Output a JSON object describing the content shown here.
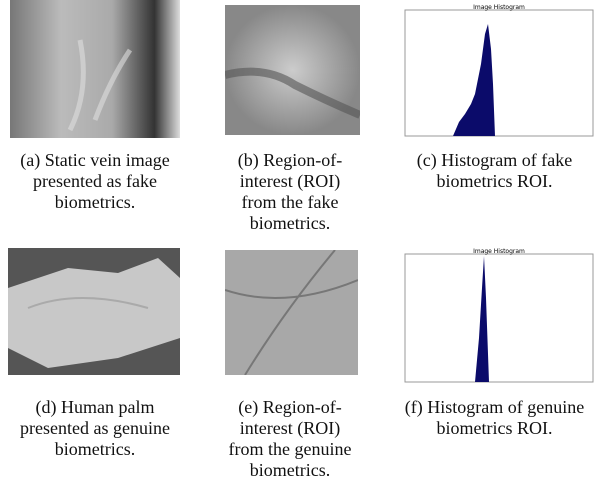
{
  "panels": [
    {
      "caption": [
        "(a) Static vein image",
        "presented as fake",
        "biometrics."
      ]
    },
    {
      "caption": [
        "(b) Region-of-",
        "interest (ROI)",
        "from the fake",
        "biometrics."
      ]
    },
    {
      "caption": [
        "(c) Histogram  of fake",
        "biometrics ROI."
      ],
      "plot_title": "Image Histogram"
    },
    {
      "caption": [
        "(d) Human palm",
        "presented as genuine",
        "biometrics."
      ]
    },
    {
      "caption": [
        "(e) Region-of-",
        "interest (ROI)",
        "from the genuine",
        "biometrics."
      ]
    },
    {
      "caption": [
        "(f) Histogram of genuine",
        "biometrics ROI."
      ],
      "plot_title": "Image Histogram"
    }
  ]
}
